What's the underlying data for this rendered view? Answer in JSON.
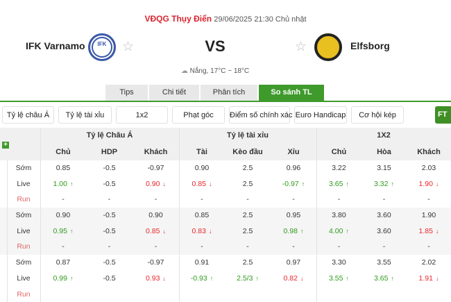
{
  "match": {
    "league": "VĐQG Thụy Điển",
    "datetime": "29/06/2025 21:30 Chủ nhật",
    "home": "IFK Varnamo",
    "away": "Elfsborg",
    "vs": "VS",
    "weather": "Nắng, 17°C ~ 18°C",
    "home_logo_text": "IFK",
    "away_logo_text": "Elfsborg"
  },
  "tabs": [
    {
      "label": "Tips"
    },
    {
      "label": "Chi tiết"
    },
    {
      "label": "Phân tích"
    },
    {
      "label": "So sánh TL",
      "active": true
    }
  ],
  "markets": [
    {
      "label": "Tỷ lệ châu Á"
    },
    {
      "label": "Tỷ lệ tài xỉu"
    },
    {
      "label": "1x2"
    },
    {
      "label": "Phạt góc"
    },
    {
      "label": "Điểm số chính xác"
    },
    {
      "label": "Euro Handicap"
    },
    {
      "label": "Cơ hội kép"
    }
  ],
  "ft_label": "FT",
  "colors": {
    "accent": "#3f9a2c",
    "up": "#2f9a1c",
    "down": "#e8262c",
    "league": "#d9232e"
  },
  "table": {
    "groups": [
      "Tỷ lệ Châu Á",
      "Tỷ lệ tài xỉu",
      "1X2"
    ],
    "columns": [
      "Chủ",
      "HDP",
      "Khách",
      "Tài",
      "Kèo đầu",
      "Xỉu",
      "Chủ",
      "Hòa",
      "Khách"
    ],
    "bookmakers": [
      {
        "rows": [
          {
            "label": "Sớm",
            "cells": [
              [
                "0.85"
              ],
              [
                "-0.5"
              ],
              [
                "-0.97"
              ],
              [
                "0.90"
              ],
              [
                "2.5"
              ],
              [
                "0.96"
              ],
              [
                "3.22"
              ],
              [
                "3.15"
              ],
              [
                "2.03"
              ]
            ]
          },
          {
            "label": "Live",
            "cells": [
              [
                "1.00",
                "up"
              ],
              [
                "-0.5"
              ],
              [
                "0.90",
                "down"
              ],
              [
                "0.85",
                "down"
              ],
              [
                "2.5"
              ],
              [
                "-0.97",
                "up"
              ],
              [
                "3.65",
                "up"
              ],
              [
                "3.32",
                "up"
              ],
              [
                "1.90",
                "down"
              ]
            ]
          },
          {
            "label": "Run",
            "cells": [
              [
                "-"
              ],
              [
                "-"
              ],
              [
                "-"
              ],
              [
                "-"
              ],
              [
                "-"
              ],
              [
                "-"
              ],
              [
                "-"
              ],
              [
                "-"
              ],
              [
                "-"
              ]
            ]
          }
        ]
      },
      {
        "rows": [
          {
            "label": "Sớm",
            "cells": [
              [
                "0.90"
              ],
              [
                "-0.5"
              ],
              [
                "0.90"
              ],
              [
                "0.85"
              ],
              [
                "2.5"
              ],
              [
                "0.95"
              ],
              [
                "3.80"
              ],
              [
                "3.60"
              ],
              [
                "1.90"
              ]
            ]
          },
          {
            "label": "Live",
            "cells": [
              [
                "0.95",
                "up"
              ],
              [
                "-0.5"
              ],
              [
                "0.85",
                "down"
              ],
              [
                "0.83",
                "down"
              ],
              [
                "2.5"
              ],
              [
                "0.98",
                "up"
              ],
              [
                "4.00",
                "up"
              ],
              [
                "3.60"
              ],
              [
                "1.85",
                "down"
              ]
            ]
          },
          {
            "label": "Run",
            "cells": [
              [
                "-"
              ],
              [
                "-"
              ],
              [
                "-"
              ],
              [
                "-"
              ],
              [
                "-"
              ],
              [
                "-"
              ],
              [
                "-"
              ],
              [
                "-"
              ],
              [
                "-"
              ]
            ]
          }
        ]
      },
      {
        "rows": [
          {
            "label": "Sớm",
            "cells": [
              [
                "0.87"
              ],
              [
                "-0.5"
              ],
              [
                "-0.97"
              ],
              [
                "0.91"
              ],
              [
                "2.5"
              ],
              [
                "0.97"
              ],
              [
                "3.30"
              ],
              [
                "3.55"
              ],
              [
                "2.02"
              ]
            ]
          },
          {
            "label": "Live",
            "cells": [
              [
                "0.99",
                "up"
              ],
              [
                "-0.5"
              ],
              [
                "0.93",
                "down"
              ],
              [
                "-0.93",
                "up"
              ],
              [
                "2.5/3",
                "up"
              ],
              [
                "0.82",
                "down"
              ],
              [
                "3.55",
                "up"
              ],
              [
                "3.65",
                "up"
              ],
              [
                "1.91",
                "down"
              ]
            ]
          },
          {
            "label": "Run",
            "cells": []
          }
        ]
      }
    ]
  }
}
